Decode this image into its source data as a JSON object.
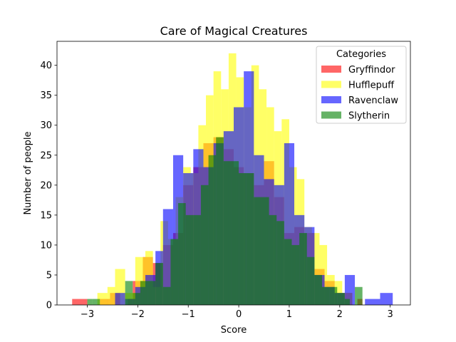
{
  "chart_data": {
    "type": "bar",
    "subtype": "overlapping-histogram",
    "title": "Care of Magical Creatures",
    "xlabel": "Score",
    "ylabel": "Number of people",
    "xlim": [
      -3.6,
      3.4
    ],
    "ylim": [
      0,
      44
    ],
    "xticks": [
      -3,
      -2,
      -1,
      0,
      1,
      2,
      3
    ],
    "xtick_labels": [
      "−3",
      "−2",
      "−1",
      "0",
      "1",
      "2",
      "3"
    ],
    "yticks": [
      0,
      5,
      10,
      15,
      20,
      25,
      30,
      35,
      40
    ],
    "grid": false,
    "legend": {
      "title": "Categories",
      "position": "top-right"
    },
    "series": [
      {
        "name": "Gryffindor",
        "color": "#ff0000",
        "alpha": 0.6,
        "bins": [
          {
            "x0": -3.3,
            "x1": -3.0,
            "count": 1
          },
          {
            "x0": -2.75,
            "x1": -2.55,
            "count": 1
          },
          {
            "x0": -2.55,
            "x1": -2.35,
            "count": 2
          },
          {
            "x0": -2.2,
            "x1": -2.1,
            "count": 1
          },
          {
            "x0": -2.1,
            "x1": -1.9,
            "count": 4
          },
          {
            "x0": -1.9,
            "x1": -1.7,
            "count": 8
          },
          {
            "x0": -1.7,
            "x1": -1.5,
            "count": 7
          },
          {
            "x0": -1.5,
            "x1": -1.3,
            "count": 10
          },
          {
            "x0": -1.3,
            "x1": -1.1,
            "count": 12
          },
          {
            "x0": -1.1,
            "x1": -0.9,
            "count": 20
          },
          {
            "x0": -0.9,
            "x1": -0.7,
            "count": 23
          },
          {
            "x0": -0.7,
            "x1": -0.5,
            "count": 27
          },
          {
            "x0": -0.5,
            "x1": -0.3,
            "count": 28
          },
          {
            "x0": -0.3,
            "x1": -0.1,
            "count": 26
          },
          {
            "x0": -0.1,
            "x1": 0.1,
            "count": 23
          },
          {
            "x0": 0.1,
            "x1": 0.3,
            "count": 22
          },
          {
            "x0": 0.3,
            "x1": 0.5,
            "count": 20
          },
          {
            "x0": 0.5,
            "x1": 0.7,
            "count": 24
          },
          {
            "x0": 0.7,
            "x1": 0.9,
            "count": 18
          },
          {
            "x0": 0.9,
            "x1": 1.1,
            "count": 12
          },
          {
            "x0": 1.1,
            "x1": 1.3,
            "count": 13
          },
          {
            "x0": 1.3,
            "x1": 1.5,
            "count": 12
          },
          {
            "x0": 1.5,
            "x1": 1.7,
            "count": 6
          },
          {
            "x0": 1.7,
            "x1": 1.9,
            "count": 4
          },
          {
            "x0": 1.9,
            "x1": 2.1,
            "count": 2
          },
          {
            "x0": 2.1,
            "x1": 2.25,
            "count": 2
          },
          {
            "x0": 2.35,
            "x1": 2.45,
            "count": 1
          }
        ]
      },
      {
        "name": "Hufflepuff",
        "color": "#ffff00",
        "alpha": 0.6,
        "bins": [
          {
            "x0": -2.8,
            "x1": -2.6,
            "count": 2
          },
          {
            "x0": -2.6,
            "x1": -2.45,
            "count": 3
          },
          {
            "x0": -2.45,
            "x1": -2.25,
            "count": 6
          },
          {
            "x0": -2.25,
            "x1": -2.05,
            "count": 2
          },
          {
            "x0": -2.05,
            "x1": -1.85,
            "count": 8
          },
          {
            "x0": -1.85,
            "x1": -1.7,
            "count": 9
          },
          {
            "x0": -1.7,
            "x1": -1.55,
            "count": 3
          },
          {
            "x0": -1.55,
            "x1": -1.4,
            "count": 14
          },
          {
            "x0": -1.4,
            "x1": -1.25,
            "count": 11
          },
          {
            "x0": -1.25,
            "x1": -1.1,
            "count": 18
          },
          {
            "x0": -1.1,
            "x1": -0.95,
            "count": 23
          },
          {
            "x0": -0.95,
            "x1": -0.8,
            "count": 22
          },
          {
            "x0": -0.8,
            "x1": -0.65,
            "count": 30
          },
          {
            "x0": -0.65,
            "x1": -0.5,
            "count": 35
          },
          {
            "x0": -0.5,
            "x1": -0.35,
            "count": 39
          },
          {
            "x0": -0.35,
            "x1": -0.2,
            "count": 36
          },
          {
            "x0": -0.2,
            "x1": -0.05,
            "count": 42
          },
          {
            "x0": -0.05,
            "x1": 0.1,
            "count": 38
          },
          {
            "x0": 0.1,
            "x1": 0.25,
            "count": 33
          },
          {
            "x0": 0.25,
            "x1": 0.4,
            "count": 40
          },
          {
            "x0": 0.4,
            "x1": 0.55,
            "count": 36
          },
          {
            "x0": 0.55,
            "x1": 0.7,
            "count": 33
          },
          {
            "x0": 0.7,
            "x1": 0.85,
            "count": 29
          },
          {
            "x0": 0.85,
            "x1": 1.0,
            "count": 31
          },
          {
            "x0": 1.0,
            "x1": 1.15,
            "count": 23
          },
          {
            "x0": 1.15,
            "x1": 1.3,
            "count": 21
          },
          {
            "x0": 1.3,
            "x1": 1.45,
            "count": 13
          },
          {
            "x0": 1.45,
            "x1": 1.6,
            "count": 12
          },
          {
            "x0": 1.6,
            "x1": 1.75,
            "count": 10
          },
          {
            "x0": 1.75,
            "x1": 1.9,
            "count": 5
          },
          {
            "x0": 1.9,
            "x1": 2.05,
            "count": 4
          },
          {
            "x0": 2.05,
            "x1": 2.25,
            "count": 2
          }
        ]
      },
      {
        "name": "Ravenclaw",
        "color": "#0000ff",
        "alpha": 0.6,
        "bins": [
          {
            "x0": -2.45,
            "x1": -2.25,
            "count": 2
          },
          {
            "x0": -2.25,
            "x1": -2.05,
            "count": 1
          },
          {
            "x0": -2.05,
            "x1": -1.85,
            "count": 3
          },
          {
            "x0": -1.85,
            "x1": -1.65,
            "count": 5
          },
          {
            "x0": -1.65,
            "x1": -1.5,
            "count": 9
          },
          {
            "x0": -1.5,
            "x1": -1.3,
            "count": 16
          },
          {
            "x0": -1.3,
            "x1": -1.1,
            "count": 25
          },
          {
            "x0": -1.1,
            "x1": -0.9,
            "count": 22
          },
          {
            "x0": -0.9,
            "x1": -0.7,
            "count": 26
          },
          {
            "x0": -0.7,
            "x1": -0.5,
            "count": 23
          },
          {
            "x0": -0.5,
            "x1": -0.3,
            "count": 27
          },
          {
            "x0": -0.3,
            "x1": -0.1,
            "count": 29
          },
          {
            "x0": -0.1,
            "x1": 0.1,
            "count": 33
          },
          {
            "x0": 0.1,
            "x1": 0.3,
            "count": 39
          },
          {
            "x0": 0.3,
            "x1": 0.5,
            "count": 25
          },
          {
            "x0": 0.5,
            "x1": 0.7,
            "count": 21
          },
          {
            "x0": 0.7,
            "x1": 0.9,
            "count": 20
          },
          {
            "x0": 0.9,
            "x1": 1.1,
            "count": 27
          },
          {
            "x0": 1.1,
            "x1": 1.3,
            "count": 15
          },
          {
            "x0": 1.3,
            "x1": 1.5,
            "count": 13
          },
          {
            "x0": 1.5,
            "x1": 1.7,
            "count": 5
          },
          {
            "x0": 1.7,
            "x1": 1.9,
            "count": 3
          },
          {
            "x0": 1.9,
            "x1": 2.1,
            "count": 2
          },
          {
            "x0": 2.1,
            "x1": 2.3,
            "count": 5
          },
          {
            "x0": 2.5,
            "x1": 2.8,
            "count": 1
          },
          {
            "x0": 2.8,
            "x1": 3.05,
            "count": 2
          }
        ]
      },
      {
        "name": "Slytherin",
        "color": "#008000",
        "alpha": 0.6,
        "bins": [
          {
            "x0": -3.0,
            "x1": -2.9,
            "count": 1
          },
          {
            "x0": -2.9,
            "x1": -2.75,
            "count": 1
          },
          {
            "x0": -2.25,
            "x1": -2.1,
            "count": 4
          },
          {
            "x0": -2.1,
            "x1": -1.95,
            "count": 2
          },
          {
            "x0": -1.95,
            "x1": -1.8,
            "count": 4
          },
          {
            "x0": -1.8,
            "x1": -1.65,
            "count": 4
          },
          {
            "x0": -1.65,
            "x1": -1.5,
            "count": 7
          },
          {
            "x0": -1.5,
            "x1": -1.35,
            "count": 3
          },
          {
            "x0": -1.35,
            "x1": -1.2,
            "count": 11
          },
          {
            "x0": -1.2,
            "x1": -1.05,
            "count": 17
          },
          {
            "x0": -1.05,
            "x1": -0.9,
            "count": 15
          },
          {
            "x0": -0.9,
            "x1": -0.75,
            "count": 15
          },
          {
            "x0": -0.75,
            "x1": -0.6,
            "count": 20
          },
          {
            "x0": -0.6,
            "x1": -0.45,
            "count": 25
          },
          {
            "x0": -0.45,
            "x1": -0.3,
            "count": 28
          },
          {
            "x0": -0.3,
            "x1": -0.15,
            "count": 24
          },
          {
            "x0": -0.15,
            "x1": 0.0,
            "count": 24
          },
          {
            "x0": 0.0,
            "x1": 0.15,
            "count": 22
          },
          {
            "x0": 0.15,
            "x1": 0.3,
            "count": 22
          },
          {
            "x0": 0.3,
            "x1": 0.45,
            "count": 18
          },
          {
            "x0": 0.45,
            "x1": 0.6,
            "count": 18
          },
          {
            "x0": 0.6,
            "x1": 0.75,
            "count": 15
          },
          {
            "x0": 0.75,
            "x1": 0.9,
            "count": 14
          },
          {
            "x0": 0.9,
            "x1": 1.05,
            "count": 11
          },
          {
            "x0": 1.05,
            "x1": 1.2,
            "count": 10
          },
          {
            "x0": 1.2,
            "x1": 1.35,
            "count": 12
          },
          {
            "x0": 1.35,
            "x1": 1.5,
            "count": 8
          },
          {
            "x0": 1.5,
            "x1": 1.65,
            "count": 5
          },
          {
            "x0": 1.65,
            "x1": 1.8,
            "count": 3
          },
          {
            "x0": 1.8,
            "x1": 1.95,
            "count": 3
          },
          {
            "x0": 1.95,
            "x1": 2.1,
            "count": 2
          },
          {
            "x0": 2.1,
            "x1": 2.2,
            "count": 1
          },
          {
            "x0": 2.3,
            "x1": 2.45,
            "count": 3
          }
        ]
      }
    ]
  }
}
